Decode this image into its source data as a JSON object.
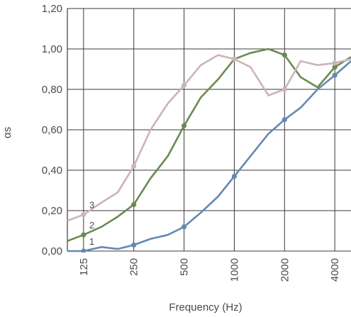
{
  "chart_data": {
    "type": "line",
    "xlabel": "Frequency (Hz)",
    "ylabel": "αs",
    "x_scale": "log",
    "xlim": [
      100,
      5000
    ],
    "ylim": [
      0,
      1.2
    ],
    "x_ticks": [
      125,
      250,
      500,
      1000,
      2000,
      4000
    ],
    "x_tick_labels": [
      "125",
      "250",
      "500",
      "1000",
      "2000",
      "4000"
    ],
    "y_ticks": [
      0,
      0.2,
      0.4,
      0.6,
      0.8,
      1.0,
      1.2
    ],
    "y_tick_labels": [
      "0,00",
      "0,20",
      "0,40",
      "0,60",
      "0,80",
      "1,00",
      "1,20"
    ],
    "grid": true,
    "series": [
      {
        "name": "1",
        "color": "#6488b4",
        "x": [
          100,
          125,
          160,
          200,
          250,
          315,
          400,
          500,
          630,
          800,
          1000,
          1250,
          1600,
          2000,
          2500,
          3150,
          4000,
          5000
        ],
        "y": [
          0.0,
          0.0,
          0.02,
          0.01,
          0.03,
          0.06,
          0.08,
          0.12,
          0.19,
          0.27,
          0.37,
          0.47,
          0.58,
          0.65,
          0.71,
          0.8,
          0.87,
          0.94
        ],
        "markers_at": [
          125,
          250,
          500,
          1000,
          2000,
          4000
        ]
      },
      {
        "name": "2",
        "color": "#6b8a52",
        "x": [
          100,
          125,
          160,
          200,
          250,
          315,
          400,
          500,
          630,
          800,
          1000,
          1250,
          1600,
          2000,
          2500,
          3150,
          4000,
          5000
        ],
        "y": [
          0.05,
          0.08,
          0.12,
          0.17,
          0.23,
          0.36,
          0.47,
          0.62,
          0.76,
          0.85,
          0.95,
          0.98,
          1.0,
          0.97,
          0.86,
          0.81,
          0.91,
          0.96
        ],
        "markers_at": [
          125,
          250,
          500,
          1000,
          2000,
          4000
        ]
      },
      {
        "name": "3",
        "color": "#cdb3ba",
        "x": [
          100,
          125,
          160,
          200,
          250,
          315,
          400,
          500,
          630,
          800,
          1000,
          1250,
          1600,
          2000,
          2500,
          3150,
          4000,
          5000
        ],
        "y": [
          0.15,
          0.18,
          0.24,
          0.29,
          0.42,
          0.6,
          0.73,
          0.82,
          0.92,
          0.97,
          0.95,
          0.91,
          0.77,
          0.8,
          0.94,
          0.92,
          0.93,
          0.95
        ],
        "markers_at": [
          125,
          250,
          500,
          1000,
          2000,
          4000
        ]
      }
    ]
  }
}
